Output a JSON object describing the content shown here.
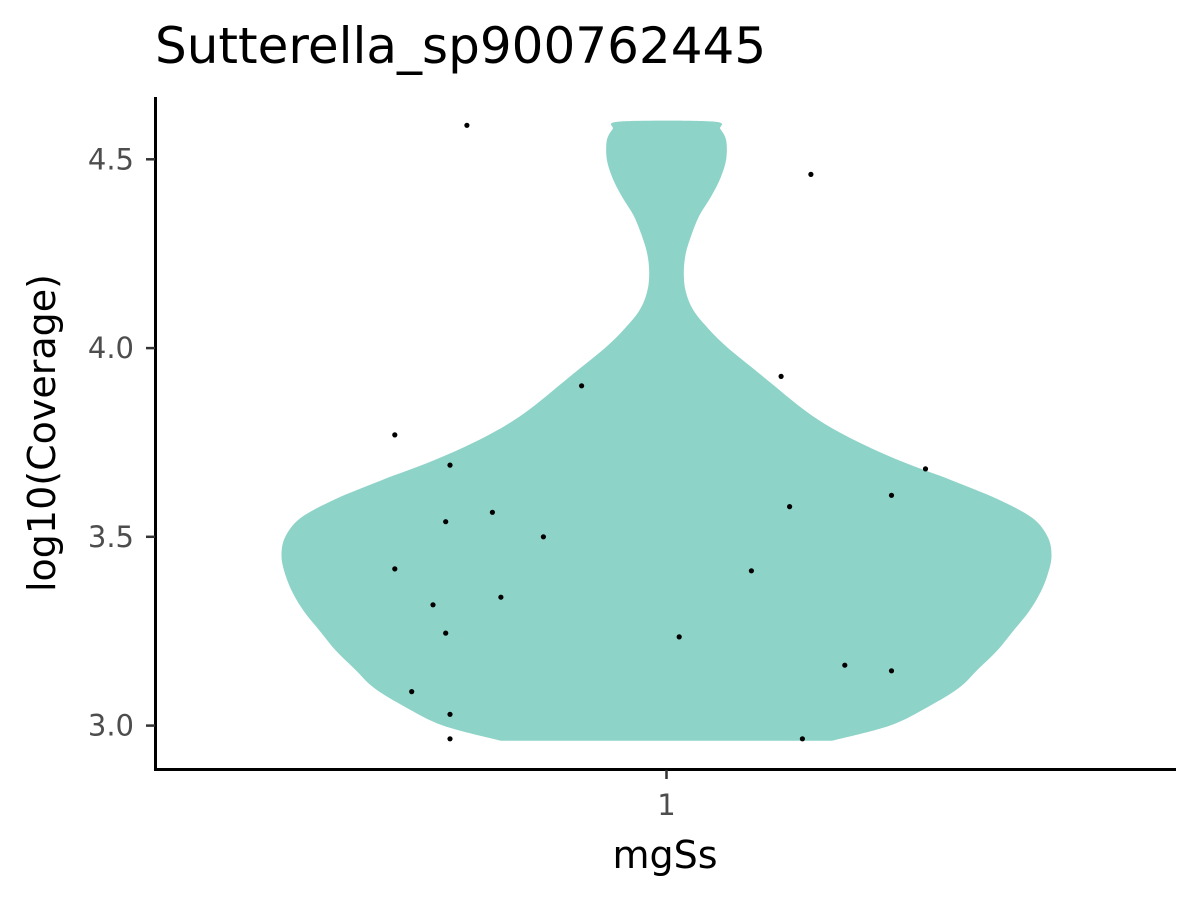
{
  "chart_data": {
    "type": "violin",
    "title": "Sutterella_sp900762445",
    "xlabel": "mgSs",
    "ylabel": "log10(Coverage)",
    "categories": [
      "1"
    ],
    "ylim": [
      2.885,
      4.665
    ],
    "yticks": [
      3.0,
      3.5,
      4.0,
      4.5
    ],
    "ytick_labels": [
      "3.0",
      "3.5",
      "4.0",
      "4.5"
    ],
    "grid": false,
    "legend": "none",
    "fill_color": "#8ed3c8",
    "point_color": "#000000",
    "violin_range": [
      2.96,
      4.6
    ],
    "violin_profile": [
      {
        "y": 2.96,
        "w": 0.43
      },
      {
        "y": 3.0,
        "w": 0.58
      },
      {
        "y": 3.05,
        "w": 0.68
      },
      {
        "y": 3.1,
        "w": 0.76
      },
      {
        "y": 3.15,
        "w": 0.81
      },
      {
        "y": 3.2,
        "w": 0.86
      },
      {
        "y": 3.25,
        "w": 0.9
      },
      {
        "y": 3.3,
        "w": 0.94
      },
      {
        "y": 3.35,
        "w": 0.97
      },
      {
        "y": 3.4,
        "w": 0.99
      },
      {
        "y": 3.45,
        "w": 1.0
      },
      {
        "y": 3.5,
        "w": 0.99
      },
      {
        "y": 3.55,
        "w": 0.95
      },
      {
        "y": 3.6,
        "w": 0.86
      },
      {
        "y": 3.65,
        "w": 0.74
      },
      {
        "y": 3.7,
        "w": 0.61
      },
      {
        "y": 3.75,
        "w": 0.5
      },
      {
        "y": 3.8,
        "w": 0.41
      },
      {
        "y": 3.85,
        "w": 0.34
      },
      {
        "y": 3.9,
        "w": 0.28
      },
      {
        "y": 3.95,
        "w": 0.22
      },
      {
        "y": 4.0,
        "w": 0.16
      },
      {
        "y": 4.05,
        "w": 0.11
      },
      {
        "y": 4.1,
        "w": 0.07
      },
      {
        "y": 4.15,
        "w": 0.05
      },
      {
        "y": 4.2,
        "w": 0.045
      },
      {
        "y": 4.25,
        "w": 0.05
      },
      {
        "y": 4.3,
        "w": 0.065
      },
      {
        "y": 4.35,
        "w": 0.085
      },
      {
        "y": 4.4,
        "w": 0.115
      },
      {
        "y": 4.45,
        "w": 0.14
      },
      {
        "y": 4.5,
        "w": 0.155
      },
      {
        "y": 4.55,
        "w": 0.155
      },
      {
        "y": 4.58,
        "w": 0.14
      },
      {
        "y": 4.6,
        "w": 0.12
      }
    ],
    "points": [
      {
        "x": 0.765,
        "y": 4.59
      },
      {
        "x": 1.17,
        "y": 4.46
      },
      {
        "x": 0.9,
        "y": 3.9
      },
      {
        "x": 1.135,
        "y": 3.925
      },
      {
        "x": 0.68,
        "y": 3.77
      },
      {
        "x": 0.745,
        "y": 3.69
      },
      {
        "x": 1.305,
        "y": 3.68
      },
      {
        "x": 1.265,
        "y": 3.61
      },
      {
        "x": 1.145,
        "y": 3.58
      },
      {
        "x": 0.795,
        "y": 3.565
      },
      {
        "x": 0.74,
        "y": 3.54
      },
      {
        "x": 0.855,
        "y": 3.5
      },
      {
        "x": 0.68,
        "y": 3.415
      },
      {
        "x": 1.1,
        "y": 3.41
      },
      {
        "x": 0.805,
        "y": 3.34
      },
      {
        "x": 0.725,
        "y": 3.32
      },
      {
        "x": 0.74,
        "y": 3.245
      },
      {
        "x": 1.015,
        "y": 3.235
      },
      {
        "x": 1.21,
        "y": 3.16
      },
      {
        "x": 1.265,
        "y": 3.145
      },
      {
        "x": 0.7,
        "y": 3.09
      },
      {
        "x": 0.745,
        "y": 3.03
      },
      {
        "x": 0.745,
        "y": 2.965
      },
      {
        "x": 1.16,
        "y": 2.965
      }
    ]
  }
}
